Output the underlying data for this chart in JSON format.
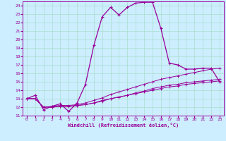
{
  "xlabel": "Windchill (Refroidissement éolien,°C)",
  "background_color": "#cceeff",
  "line_color": "#990099",
  "grid_color": "#aaddcc",
  "xlim": [
    -0.5,
    23.5
  ],
  "ylim": [
    11,
    24.5
  ],
  "xticks": [
    0,
    1,
    2,
    3,
    4,
    5,
    6,
    7,
    8,
    9,
    10,
    11,
    12,
    13,
    14,
    15,
    16,
    17,
    18,
    19,
    20,
    21,
    22,
    23
  ],
  "yticks": [
    11,
    12,
    13,
    14,
    15,
    16,
    17,
    18,
    19,
    20,
    21,
    22,
    23,
    24
  ],
  "line1_x": [
    0,
    1,
    2,
    3,
    4,
    5,
    6,
    7,
    8,
    9,
    10,
    11,
    12,
    13,
    14,
    15,
    16,
    17,
    18,
    19,
    20,
    21,
    22,
    23
  ],
  "line1_y": [
    13.0,
    13.4,
    11.7,
    12.1,
    12.4,
    11.5,
    12.5,
    14.7,
    19.3,
    22.7,
    23.8,
    22.9,
    23.8,
    24.3,
    24.4,
    24.4,
    21.3,
    17.2,
    17.0,
    16.5,
    16.5,
    16.6,
    16.6,
    15.0
  ],
  "line2_x": [
    0,
    1,
    2,
    3,
    4,
    5,
    6,
    7,
    8,
    9,
    10,
    11,
    12,
    13,
    14,
    15,
    16,
    17,
    18,
    19,
    20,
    21,
    22,
    23
  ],
  "line2_y": [
    13.0,
    13.0,
    12.0,
    12.1,
    12.2,
    12.2,
    12.3,
    12.5,
    12.8,
    13.1,
    13.5,
    13.8,
    14.1,
    14.4,
    14.7,
    15.0,
    15.3,
    15.5,
    15.7,
    15.9,
    16.1,
    16.3,
    16.5,
    16.6
  ],
  "line3_x": [
    0,
    1,
    2,
    3,
    4,
    5,
    6,
    7,
    8,
    9,
    10,
    11,
    12,
    13,
    14,
    15,
    16,
    17,
    18,
    19,
    20,
    21,
    22,
    23
  ],
  "line3_y": [
    13.0,
    13.0,
    12.0,
    12.0,
    12.1,
    12.1,
    12.2,
    12.3,
    12.5,
    12.7,
    13.0,
    13.2,
    13.4,
    13.6,
    13.8,
    14.0,
    14.2,
    14.4,
    14.5,
    14.7,
    14.8,
    14.9,
    15.0,
    15.1
  ],
  "line4_x": [
    0,
    1,
    2,
    3,
    4,
    5,
    6,
    7,
    8,
    9,
    10,
    11,
    12,
    13,
    14,
    15,
    16,
    17,
    18,
    19,
    20,
    21,
    22,
    23
  ],
  "line4_y": [
    13.0,
    13.0,
    12.0,
    12.0,
    12.1,
    12.1,
    12.2,
    12.3,
    12.5,
    12.8,
    13.0,
    13.2,
    13.4,
    13.7,
    13.9,
    14.2,
    14.4,
    14.6,
    14.7,
    14.9,
    15.0,
    15.1,
    15.2,
    15.3
  ]
}
